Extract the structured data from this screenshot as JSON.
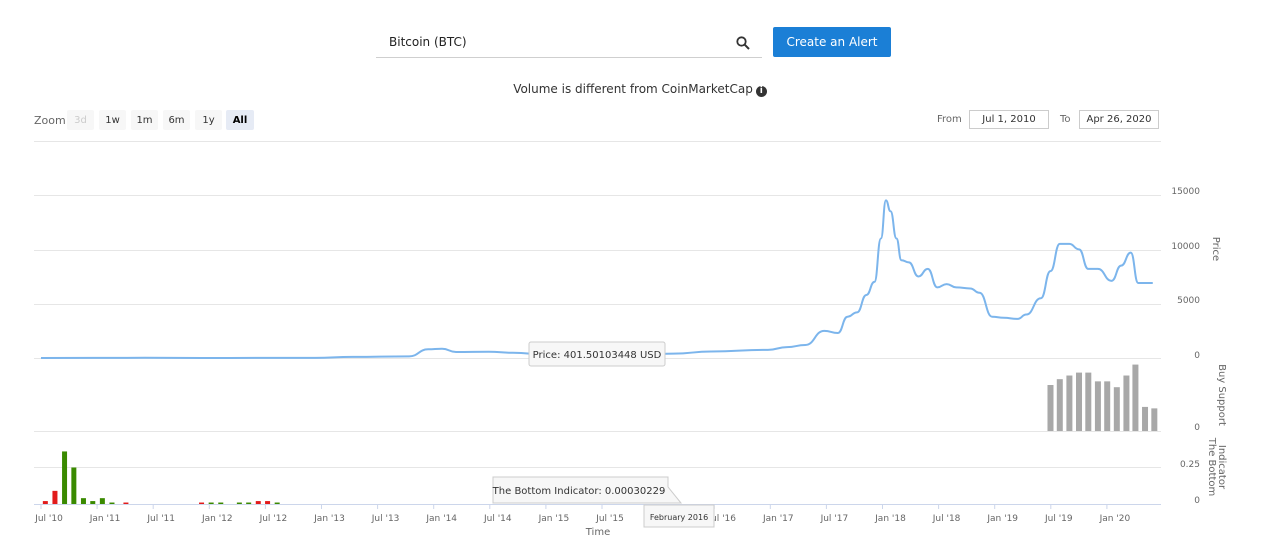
{
  "search": {
    "value": "Bitcoin (BTC)"
  },
  "alert_button": {
    "label": "Create an Alert"
  },
  "notice": {
    "text": "Volume is different from CoinMarketCap"
  },
  "zoom": {
    "label": "Zoom",
    "buttons": [
      {
        "label": "3d",
        "state": "disabled"
      },
      {
        "label": "1w",
        "state": "normal"
      },
      {
        "label": "1m",
        "state": "normal"
      },
      {
        "label": "6m",
        "state": "normal"
      },
      {
        "label": "1y",
        "state": "normal"
      },
      {
        "label": "All",
        "state": "active"
      }
    ]
  },
  "range": {
    "from_label": "From",
    "from_value": "Jul 1, 2010",
    "to_label": "To",
    "to_value": "Apr 26, 2020"
  },
  "colors": {
    "price_line": "#7cb5ec",
    "buy_support_bar": "#a8a8a8",
    "bottom_up": "#3a8a00",
    "bottom_down": "#e21b1b",
    "button": "#1b7fd6"
  },
  "chart_data": {
    "type": "line",
    "x_axis": {
      "title": "Time",
      "start": "2010-07-01",
      "end": "2020-04-26",
      "ticks": [
        "Jul '10",
        "Jan '11",
        "Jul '11",
        "Jan '12",
        "Jul '12",
        "Jan '13",
        "Jul '13",
        "Jan '14",
        "Jul '14",
        "Jan '15",
        "Jul '15",
        "Jan '16",
        "Jul '16",
        "Jan '17",
        "Jul '17",
        "Jan '18",
        "Jul '18",
        "Jan '19",
        "Jul '19",
        "Jan '20"
      ]
    },
    "panes": [
      {
        "name": "Price",
        "ylabel": "Price",
        "ylim": [
          0,
          15000
        ],
        "yticks": [
          "15000",
          "10000",
          "5000",
          "0"
        ],
        "series": [
          {
            "name": "Price",
            "points": [
              [
                "2010-07-01",
                0.06
              ],
              [
                "2011-06-01",
                20
              ],
              [
                "2011-12-01",
                3
              ],
              [
                "2012-06-01",
                6
              ],
              [
                "2012-12-01",
                13
              ],
              [
                "2013-04-01",
                100
              ],
              [
                "2013-10-01",
                150
              ],
              [
                "2013-12-01",
                800
              ],
              [
                "2014-01-15",
                850
              ],
              [
                "2014-03-01",
                550
              ],
              [
                "2014-06-15",
                580
              ],
              [
                "2014-09-01",
                480
              ],
              [
                "2014-12-15",
                330
              ],
              [
                "2015-03-01",
                250
              ],
              [
                "2015-07-01",
                270
              ],
              [
                "2015-11-01",
                330
              ],
              [
                "2016-02-01",
                400
              ],
              [
                "2016-06-01",
                600
              ],
              [
                "2016-12-01",
                750
              ],
              [
                "2017-02-01",
                1000
              ],
              [
                "2017-04-01",
                1200
              ],
              [
                "2017-06-01",
                2500
              ],
              [
                "2017-07-15",
                2300
              ],
              [
                "2017-08-15",
                3800
              ],
              [
                "2017-09-15",
                4200
              ],
              [
                "2017-10-15",
                5800
              ],
              [
                "2017-11-10",
                7000
              ],
              [
                "2017-12-01",
                11000
              ],
              [
                "2017-12-17",
                14500
              ],
              [
                "2018-01-01",
                13500
              ],
              [
                "2018-01-20",
                11000
              ],
              [
                "2018-02-05",
                9000
              ],
              [
                "2018-03-01",
                8800
              ],
              [
                "2018-04-01",
                7500
              ],
              [
                "2018-05-01",
                8200
              ],
              [
                "2018-06-01",
                6500
              ],
              [
                "2018-07-01",
                6800
              ],
              [
                "2018-08-01",
                6500
              ],
              [
                "2018-09-15",
                6400
              ],
              [
                "2018-10-15",
                6000
              ],
              [
                "2018-11-25",
                3800
              ],
              [
                "2019-01-01",
                3700
              ],
              [
                "2019-02-15",
                3600
              ],
              [
                "2019-03-15",
                4000
              ],
              [
                "2019-05-01",
                5500
              ],
              [
                "2019-06-01",
                8000
              ],
              [
                "2019-07-01",
                10500
              ],
              [
                "2019-08-01",
                10500
              ],
              [
                "2019-09-01",
                10000
              ],
              [
                "2019-10-01",
                8200
              ],
              [
                "2019-11-01",
                8200
              ],
              [
                "2019-12-15",
                7100
              ],
              [
                "2020-01-15",
                8500
              ],
              [
                "2020-02-15",
                9700
              ],
              [
                "2020-03-10",
                6900
              ],
              [
                "2020-04-26",
                6900
              ]
            ]
          }
        ],
        "tooltip": "Price: 401.50103448 USD"
      },
      {
        "name": "Buy Support",
        "ylabel": "Buy Support",
        "ylim": [
          0,
          1
        ],
        "yticks": [
          "0"
        ],
        "series": [
          {
            "name": "Buy Support",
            "points": [
              [
                "2019-06-01",
                0.63
              ],
              [
                "2019-07-01",
                0.71
              ],
              [
                "2019-08-01",
                0.76
              ],
              [
                "2019-09-01",
                0.8
              ],
              [
                "2019-10-01",
                0.8
              ],
              [
                "2019-11-01",
                0.68
              ],
              [
                "2019-12-01",
                0.68
              ],
              [
                "2020-01-01",
                0.6
              ],
              [
                "2020-02-01",
                0.76
              ],
              [
                "2020-03-01",
                0.91
              ],
              [
                "2020-04-01",
                0.33
              ],
              [
                "2020-05-01",
                0.31
              ]
            ]
          }
        ]
      },
      {
        "name": "The Bottom Indicator",
        "ylabel": "The Bottom Indicator",
        "ylim": [
          0,
          0.5
        ],
        "yticks": [
          "0.25",
          "0"
        ],
        "series": [
          {
            "name": "The Bottom Indicator",
            "points": [
              [
                "2010-07-15",
                0.02,
                "down"
              ],
              [
                "2010-08-15",
                0.09,
                "down"
              ],
              [
                "2010-09-15",
                0.36,
                "up"
              ],
              [
                "2010-10-15",
                0.25,
                "up"
              ],
              [
                "2010-11-15",
                0.04,
                "up"
              ],
              [
                "2010-12-15",
                0.02,
                "up"
              ],
              [
                "2011-01-15",
                0.04,
                "up"
              ],
              [
                "2011-02-15",
                0.01,
                "up"
              ],
              [
                "2011-04-01",
                0.01,
                "down"
              ],
              [
                "2011-12-01",
                0.01,
                "down"
              ],
              [
                "2012-01-01",
                0.01,
                "up"
              ],
              [
                "2012-02-01",
                0.01,
                "up"
              ],
              [
                "2012-04-01",
                0.01,
                "up"
              ],
              [
                "2012-05-01",
                0.01,
                "up"
              ],
              [
                "2012-06-01",
                0.02,
                "down"
              ],
              [
                "2012-07-01",
                0.02,
                "down"
              ],
              [
                "2012-08-01",
                0.01,
                "up"
              ]
            ]
          }
        ],
        "tooltip": "The Bottom Indicator: 0.00030229"
      }
    ],
    "crosshair_label": "February 2016"
  }
}
